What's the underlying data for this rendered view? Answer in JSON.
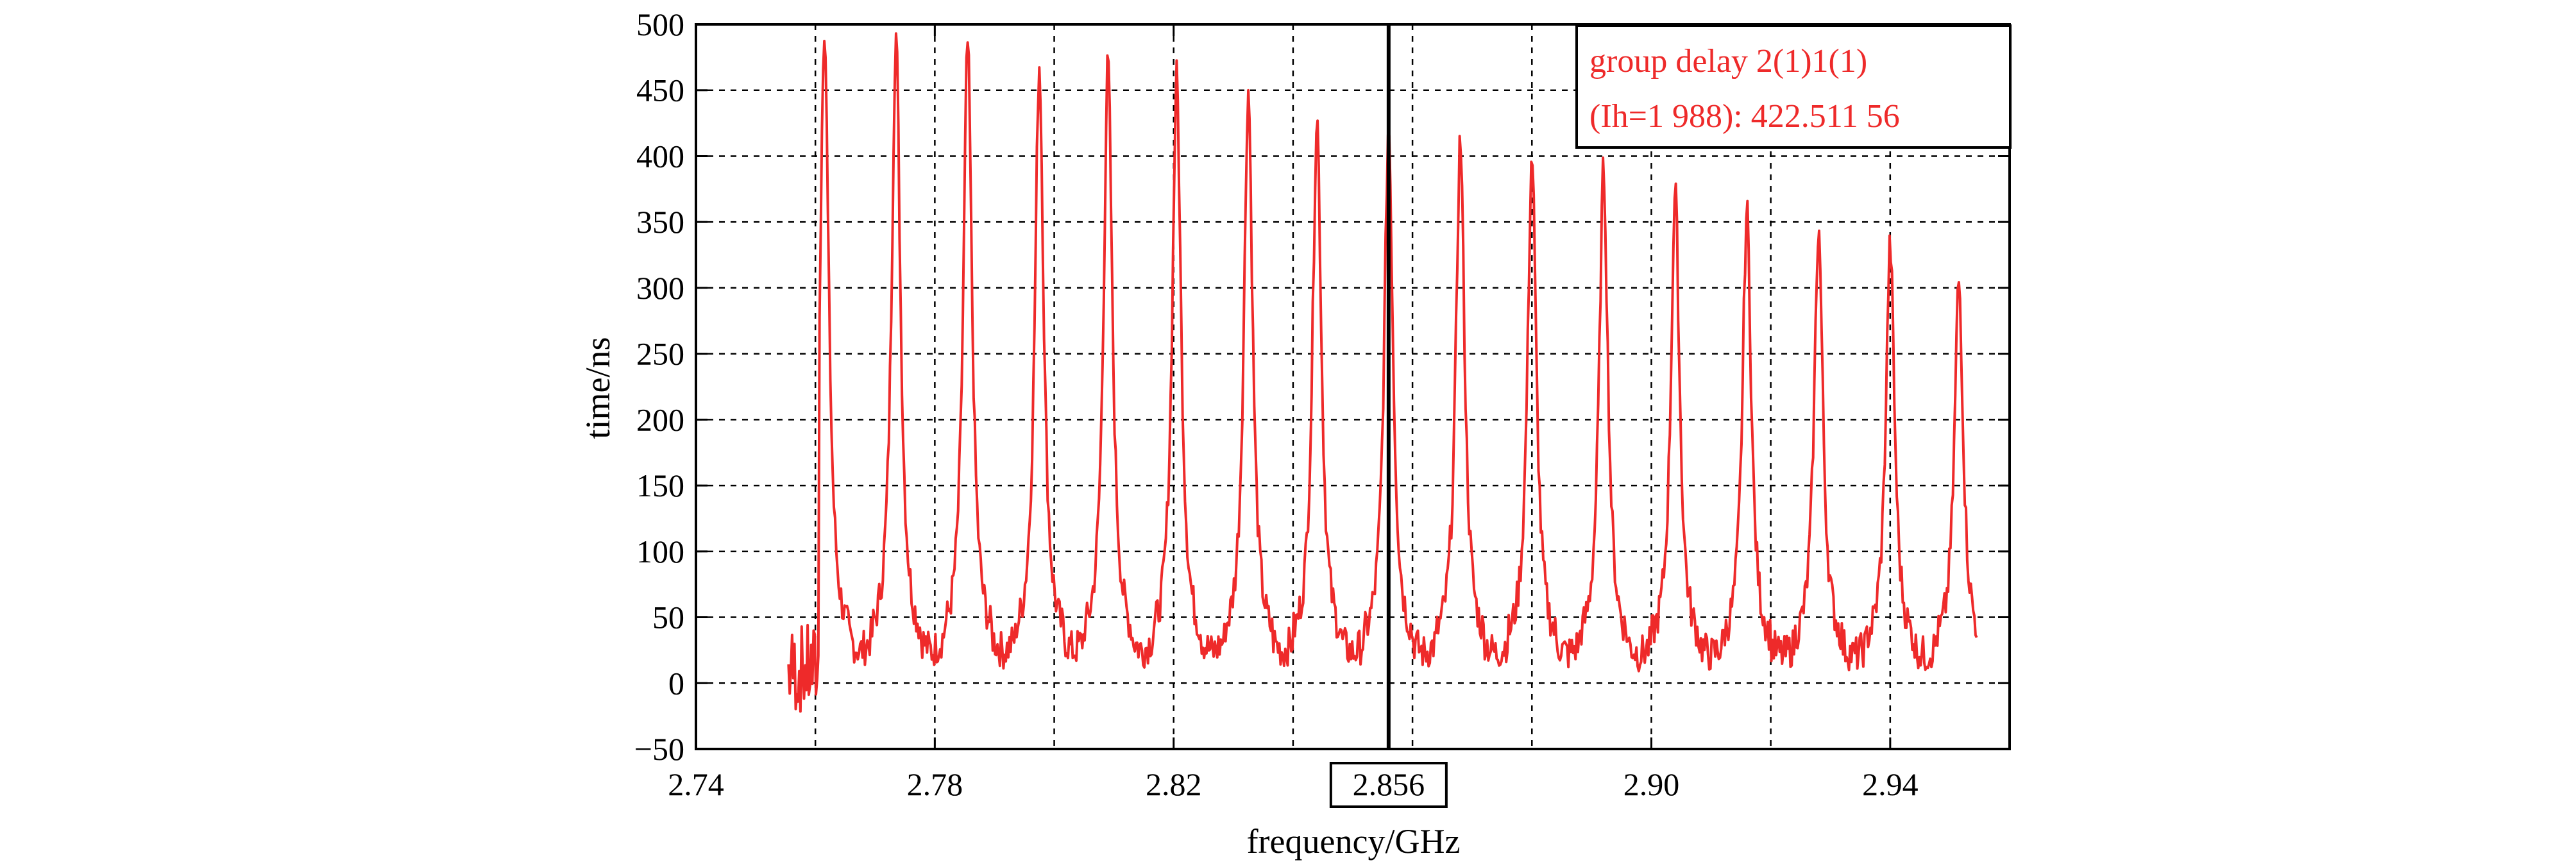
{
  "chart_data": {
    "type": "line",
    "xlabel": "frequency/GHz",
    "ylabel": "time/ns",
    "xlim": [
      2.74,
      2.96
    ],
    "ylim": [
      -50,
      500
    ],
    "x_tick_labels": [
      "2.74",
      "2.78",
      "2.82",
      "2.856",
      "2.90",
      "2.94"
    ],
    "x_tick_values": [
      2.74,
      2.78,
      2.82,
      2.856,
      2.9,
      2.94
    ],
    "y_tick_labels": [
      "500",
      "450",
      "400",
      "350",
      "300",
      "250",
      "200",
      "150",
      "100",
      "50",
      "0",
      "−50"
    ],
    "y_tick_values": [
      500,
      450,
      400,
      350,
      300,
      250,
      200,
      150,
      100,
      50,
      0,
      -50
    ],
    "highlighted_tick": "2.856",
    "grid": true,
    "grid_x": [
      2.76,
      2.78,
      2.8,
      2.82,
      2.84,
      2.86,
      2.88,
      2.9,
      2.92,
      2.94
    ],
    "marker_line_x": 2.856,
    "legend_position": "top-right",
    "legend_lines": [
      "group delay 2(1)1(1)",
      "(Ih=1 988): 422.511 56"
    ],
    "series": [
      {
        "color": "#ee2a2a",
        "peaks": [
          {
            "x": 2.7615,
            "y": 500
          },
          {
            "x": 2.7735,
            "y": 492
          },
          {
            "x": 2.7855,
            "y": 485
          },
          {
            "x": 2.7975,
            "y": 470
          },
          {
            "x": 2.809,
            "y": 470
          },
          {
            "x": 2.8205,
            "y": 460
          },
          {
            "x": 2.8325,
            "y": 450
          },
          {
            "x": 2.844,
            "y": 430
          },
          {
            "x": 2.856,
            "y": 422
          },
          {
            "x": 2.868,
            "y": 412
          },
          {
            "x": 2.88,
            "y": 400
          },
          {
            "x": 2.892,
            "y": 390
          },
          {
            "x": 2.904,
            "y": 372
          },
          {
            "x": 2.916,
            "y": 358
          },
          {
            "x": 2.928,
            "y": 345
          },
          {
            "x": 2.94,
            "y": 332
          },
          {
            "x": 2.9515,
            "y": 305
          }
        ],
        "x_start": 2.7555,
        "x_end": 2.9545,
        "baseline": 20
      }
    ]
  }
}
